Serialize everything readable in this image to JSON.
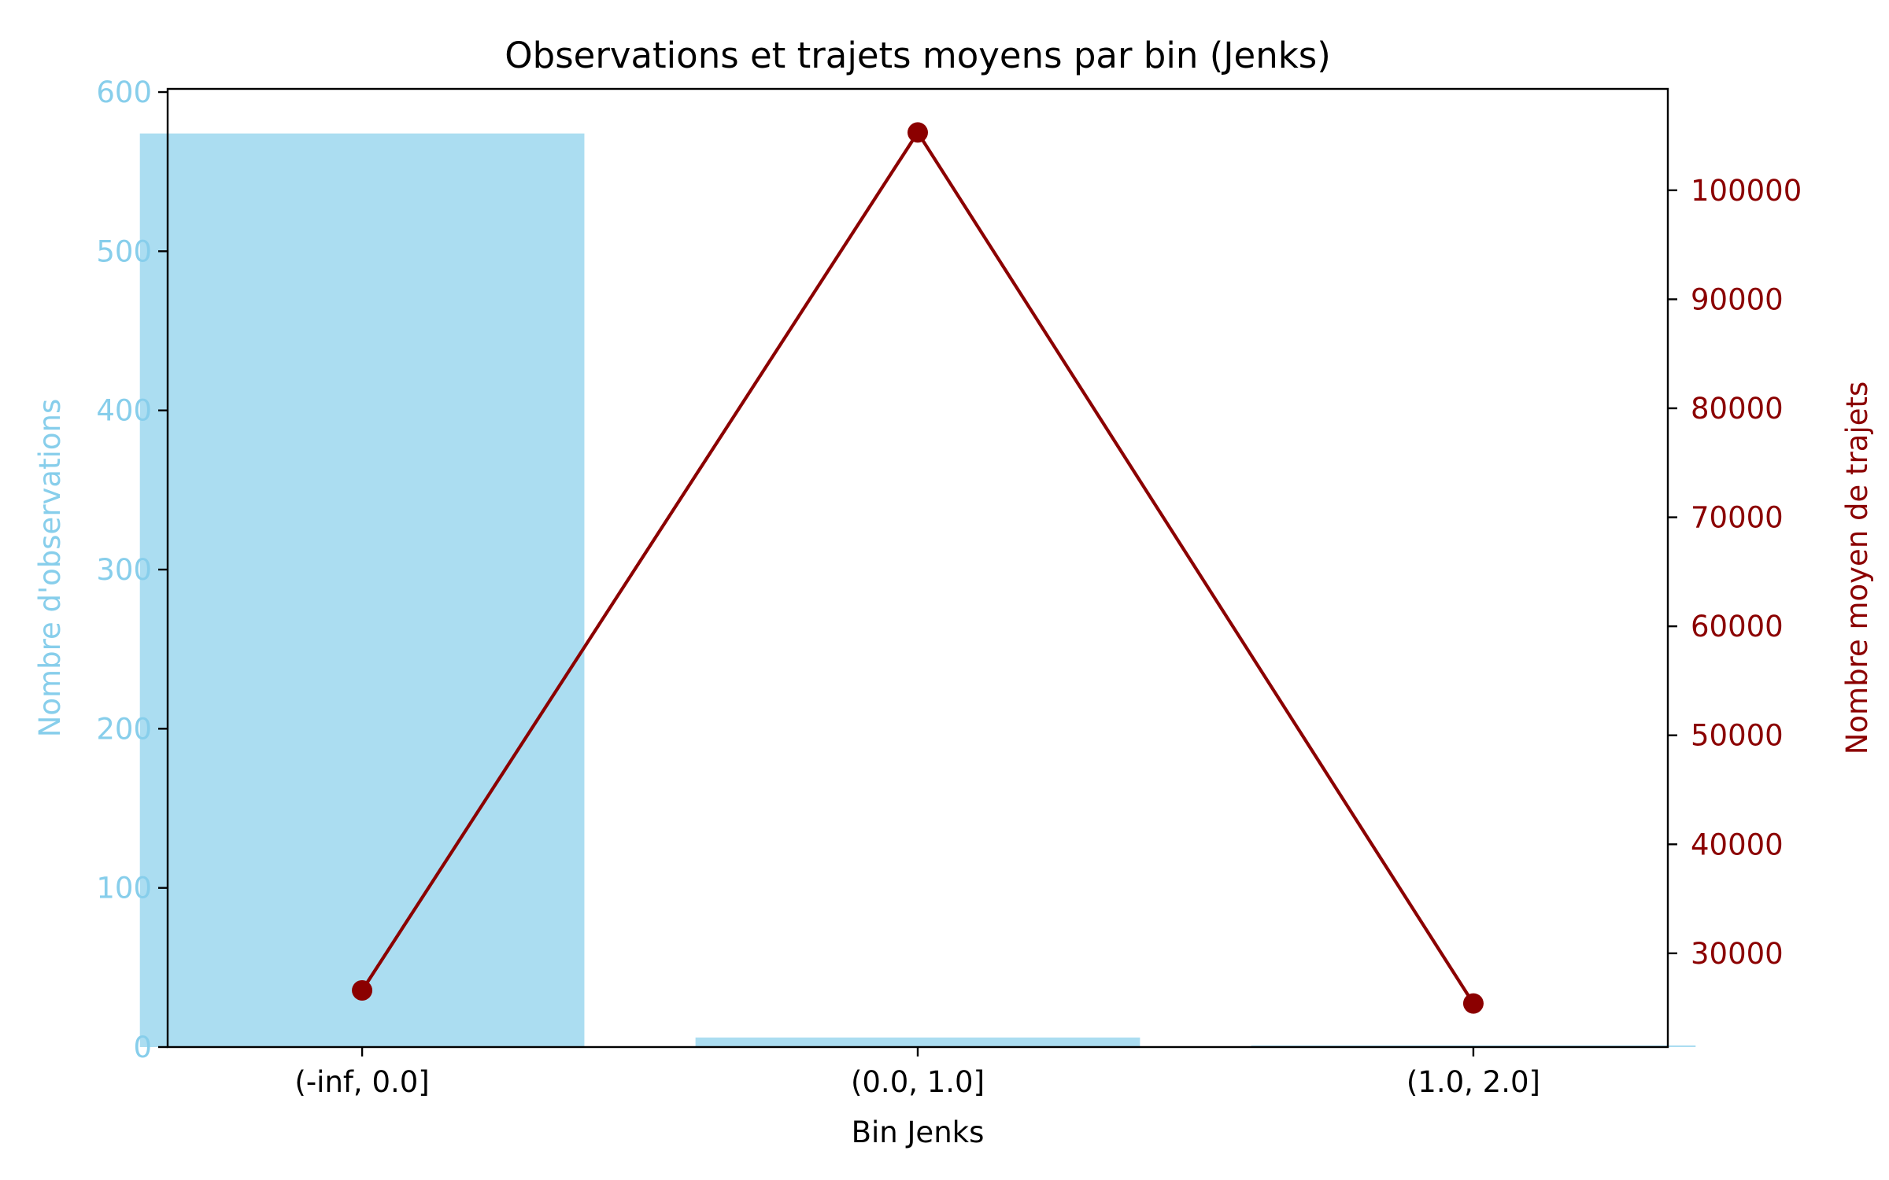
{
  "chart_data": {
    "type": "bar",
    "title": "Observations et trajets moyens par bin (Jenks)",
    "xlabel": "Bin Jenks",
    "categories": [
      "(-inf, 0.0]",
      "(0.0, 1.0]",
      "(1.0, 2.0]"
    ],
    "series": [
      {
        "name": "Nombre d'observations",
        "type": "bar",
        "axis": "left",
        "color": "#87ceeb",
        "values": [
          574,
          6,
          1
        ]
      },
      {
        "name": "Nombre moyen de trajets",
        "type": "line",
        "axis": "right",
        "color": "#8b0000",
        "marker": "circle",
        "values": [
          26600,
          105300,
          25400
        ]
      }
    ],
    "y_left": {
      "label": "Nombre d'observations",
      "lim": [
        0,
        602
      ],
      "ticks": [
        0,
        100,
        200,
        300,
        400,
        500,
        600
      ],
      "color": "#87ceeb"
    },
    "y_right": {
      "label": "Nombre moyen de trajets",
      "lim": [
        21400,
        109300
      ],
      "ticks": [
        30000,
        40000,
        50000,
        60000,
        70000,
        80000,
        90000,
        100000
      ],
      "color": "#8b0000"
    },
    "grid": false,
    "legend": "none"
  }
}
